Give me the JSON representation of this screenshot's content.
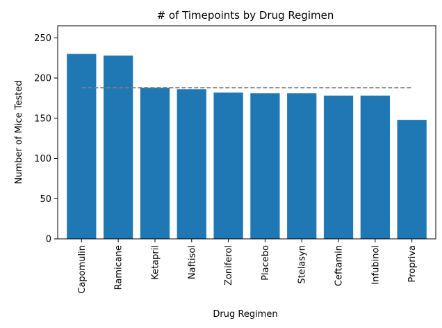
{
  "chart_data": {
    "type": "bar",
    "title": "# of Timepoints by Drug Regimen",
    "xlabel": "Drug Regimen",
    "ylabel": "Number of Mice Tested",
    "categories": [
      "Capomulin",
      "Ramicane",
      "Ketapril",
      "Naftisol",
      "Zoniferol",
      "Placebo",
      "Stelasyn",
      "Ceftamin",
      "Infubinol",
      "Propriva"
    ],
    "values": [
      230,
      228,
      188,
      186,
      182,
      181,
      181,
      178,
      178,
      148
    ],
    "ylim": [
      0,
      265
    ],
    "yticks": [
      0,
      50,
      100,
      150,
      200,
      250
    ],
    "reference_line": {
      "style": "dashed",
      "value": 188,
      "x_start_category": "Capomulin",
      "x_end_category": "Propriva"
    },
    "bar_color": "#1f77b4",
    "reference_line_color": "#808080",
    "grid": false,
    "legend": "none"
  }
}
